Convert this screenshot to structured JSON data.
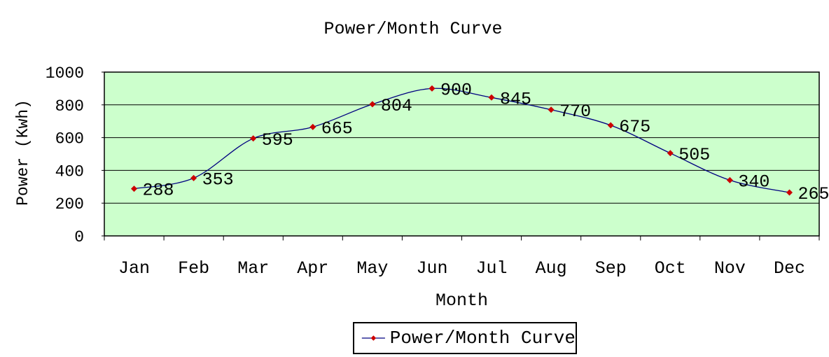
{
  "chart_data": {
    "type": "line",
    "title": "Power/Month Curve",
    "xlabel": "Month",
    "ylabel": "Power (Kwh)",
    "categories": [
      "Jan",
      "Feb",
      "Mar",
      "Apr",
      "May",
      "Jun",
      "Jul",
      "Aug",
      "Sep",
      "Oct",
      "Nov",
      "Dec"
    ],
    "series": [
      {
        "name": "Power/Month Curve",
        "values": [
          288,
          353,
          595,
          665,
          804,
          900,
          845,
          770,
          675,
          505,
          340,
          265
        ]
      }
    ],
    "ylim": [
      0,
      1000
    ],
    "yticks": [
      0,
      200,
      400,
      600,
      800,
      1000
    ],
    "grid": true,
    "data_labels": true,
    "smoothed_line": true,
    "legend_position": "bottom",
    "colors": {
      "plot_bg": "#ccffcc",
      "line": "#000080",
      "marker": "#cc0000",
      "grid": "#000000",
      "text": "#000000"
    }
  }
}
